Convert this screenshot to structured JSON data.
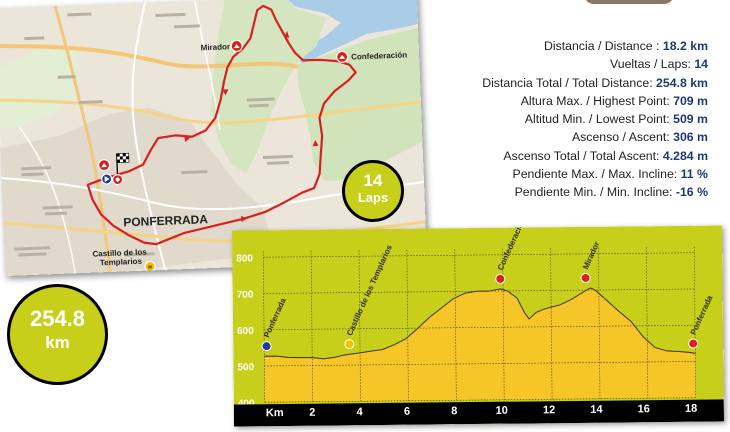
{
  "stats": [
    {
      "label": "Distancia / Distance : ",
      "value": "18.2 km"
    },
    {
      "label": "Vueltas / Laps: ",
      "value": "14"
    },
    {
      "label": "Distancia Total / Total Distance: ",
      "value": "254.8 km"
    },
    {
      "label": "Altura Max. / Highest Point: ",
      "value": "709 m"
    },
    {
      "label": "Altitud Min. / Lowest Point: ",
      "value": "509 m"
    },
    {
      "label": "Ascenso / Ascent: ",
      "value": "306 m"
    },
    {
      "label": "Ascenso Total / Total Ascent: ",
      "value": "4.284 m"
    },
    {
      "label": "Pendiente Max. / Max. Incline: ",
      "value": "11 %"
    },
    {
      "label": "Pendiente Min. / Min. Incline: ",
      "value": "-16 %"
    }
  ],
  "laps_badge": {
    "number": "14",
    "unit": "Laps"
  },
  "distance_badge": {
    "number": "254.8",
    "unit": "km"
  },
  "map": {
    "city": "PONFERRADA",
    "labels": {
      "mirador": "Mirador",
      "confederacion": "Confederación",
      "castillo_line1": "Castillo de los",
      "castillo_line2": "Templarios"
    }
  },
  "profile": {
    "x_label": "Km",
    "x_ticks": [
      "2",
      "4",
      "6",
      "8",
      "10",
      "12",
      "14",
      "16",
      "18"
    ],
    "y_ticks": [
      "800",
      "700",
      "600",
      "500",
      "400"
    ],
    "waypoints": [
      "Ponferrada",
      "Castillo de los Templarios",
      "Confederación",
      "Mirador",
      "Ponferrada"
    ]
  },
  "colors": {
    "accent": "#c8cf1b",
    "route": "#d92020",
    "profile_fill": "#f6c629",
    "stat_value": "#1f3b6e"
  },
  "chart_data": {
    "type": "area",
    "xlabel": "Km",
    "ylabel": "",
    "xlim": [
      0,
      18.2
    ],
    "ylim": [
      400,
      800
    ],
    "x_ticks": [
      2,
      4,
      6,
      8,
      10,
      12,
      14,
      16,
      18
    ],
    "y_ticks": [
      400,
      500,
      600,
      700,
      800
    ],
    "x": [
      0,
      0.5,
      1,
      1.5,
      2,
      2.5,
      3,
      3.3,
      3.6,
      4,
      4.5,
      5,
      5.5,
      6,
      6.5,
      7,
      7.5,
      8,
      8.5,
      9,
      9.5,
      10,
      10.3,
      10.7,
      11,
      11.2,
      11.5,
      11.8,
      12,
      12.5,
      13,
      13.5,
      13.8,
      14,
      14.5,
      15,
      15.5,
      16,
      16.5,
      17,
      17.5,
      18,
      18.2
    ],
    "y": [
      527,
      527,
      523,
      522,
      522,
      518,
      522,
      527,
      530,
      533,
      538,
      542,
      555,
      572,
      600,
      630,
      655,
      680,
      695,
      700,
      700,
      706,
      700,
      680,
      640,
      622,
      640,
      648,
      652,
      660,
      675,
      695,
      706,
      700,
      670,
      640,
      612,
      570,
      540,
      530,
      528,
      525,
      522
    ]
  }
}
